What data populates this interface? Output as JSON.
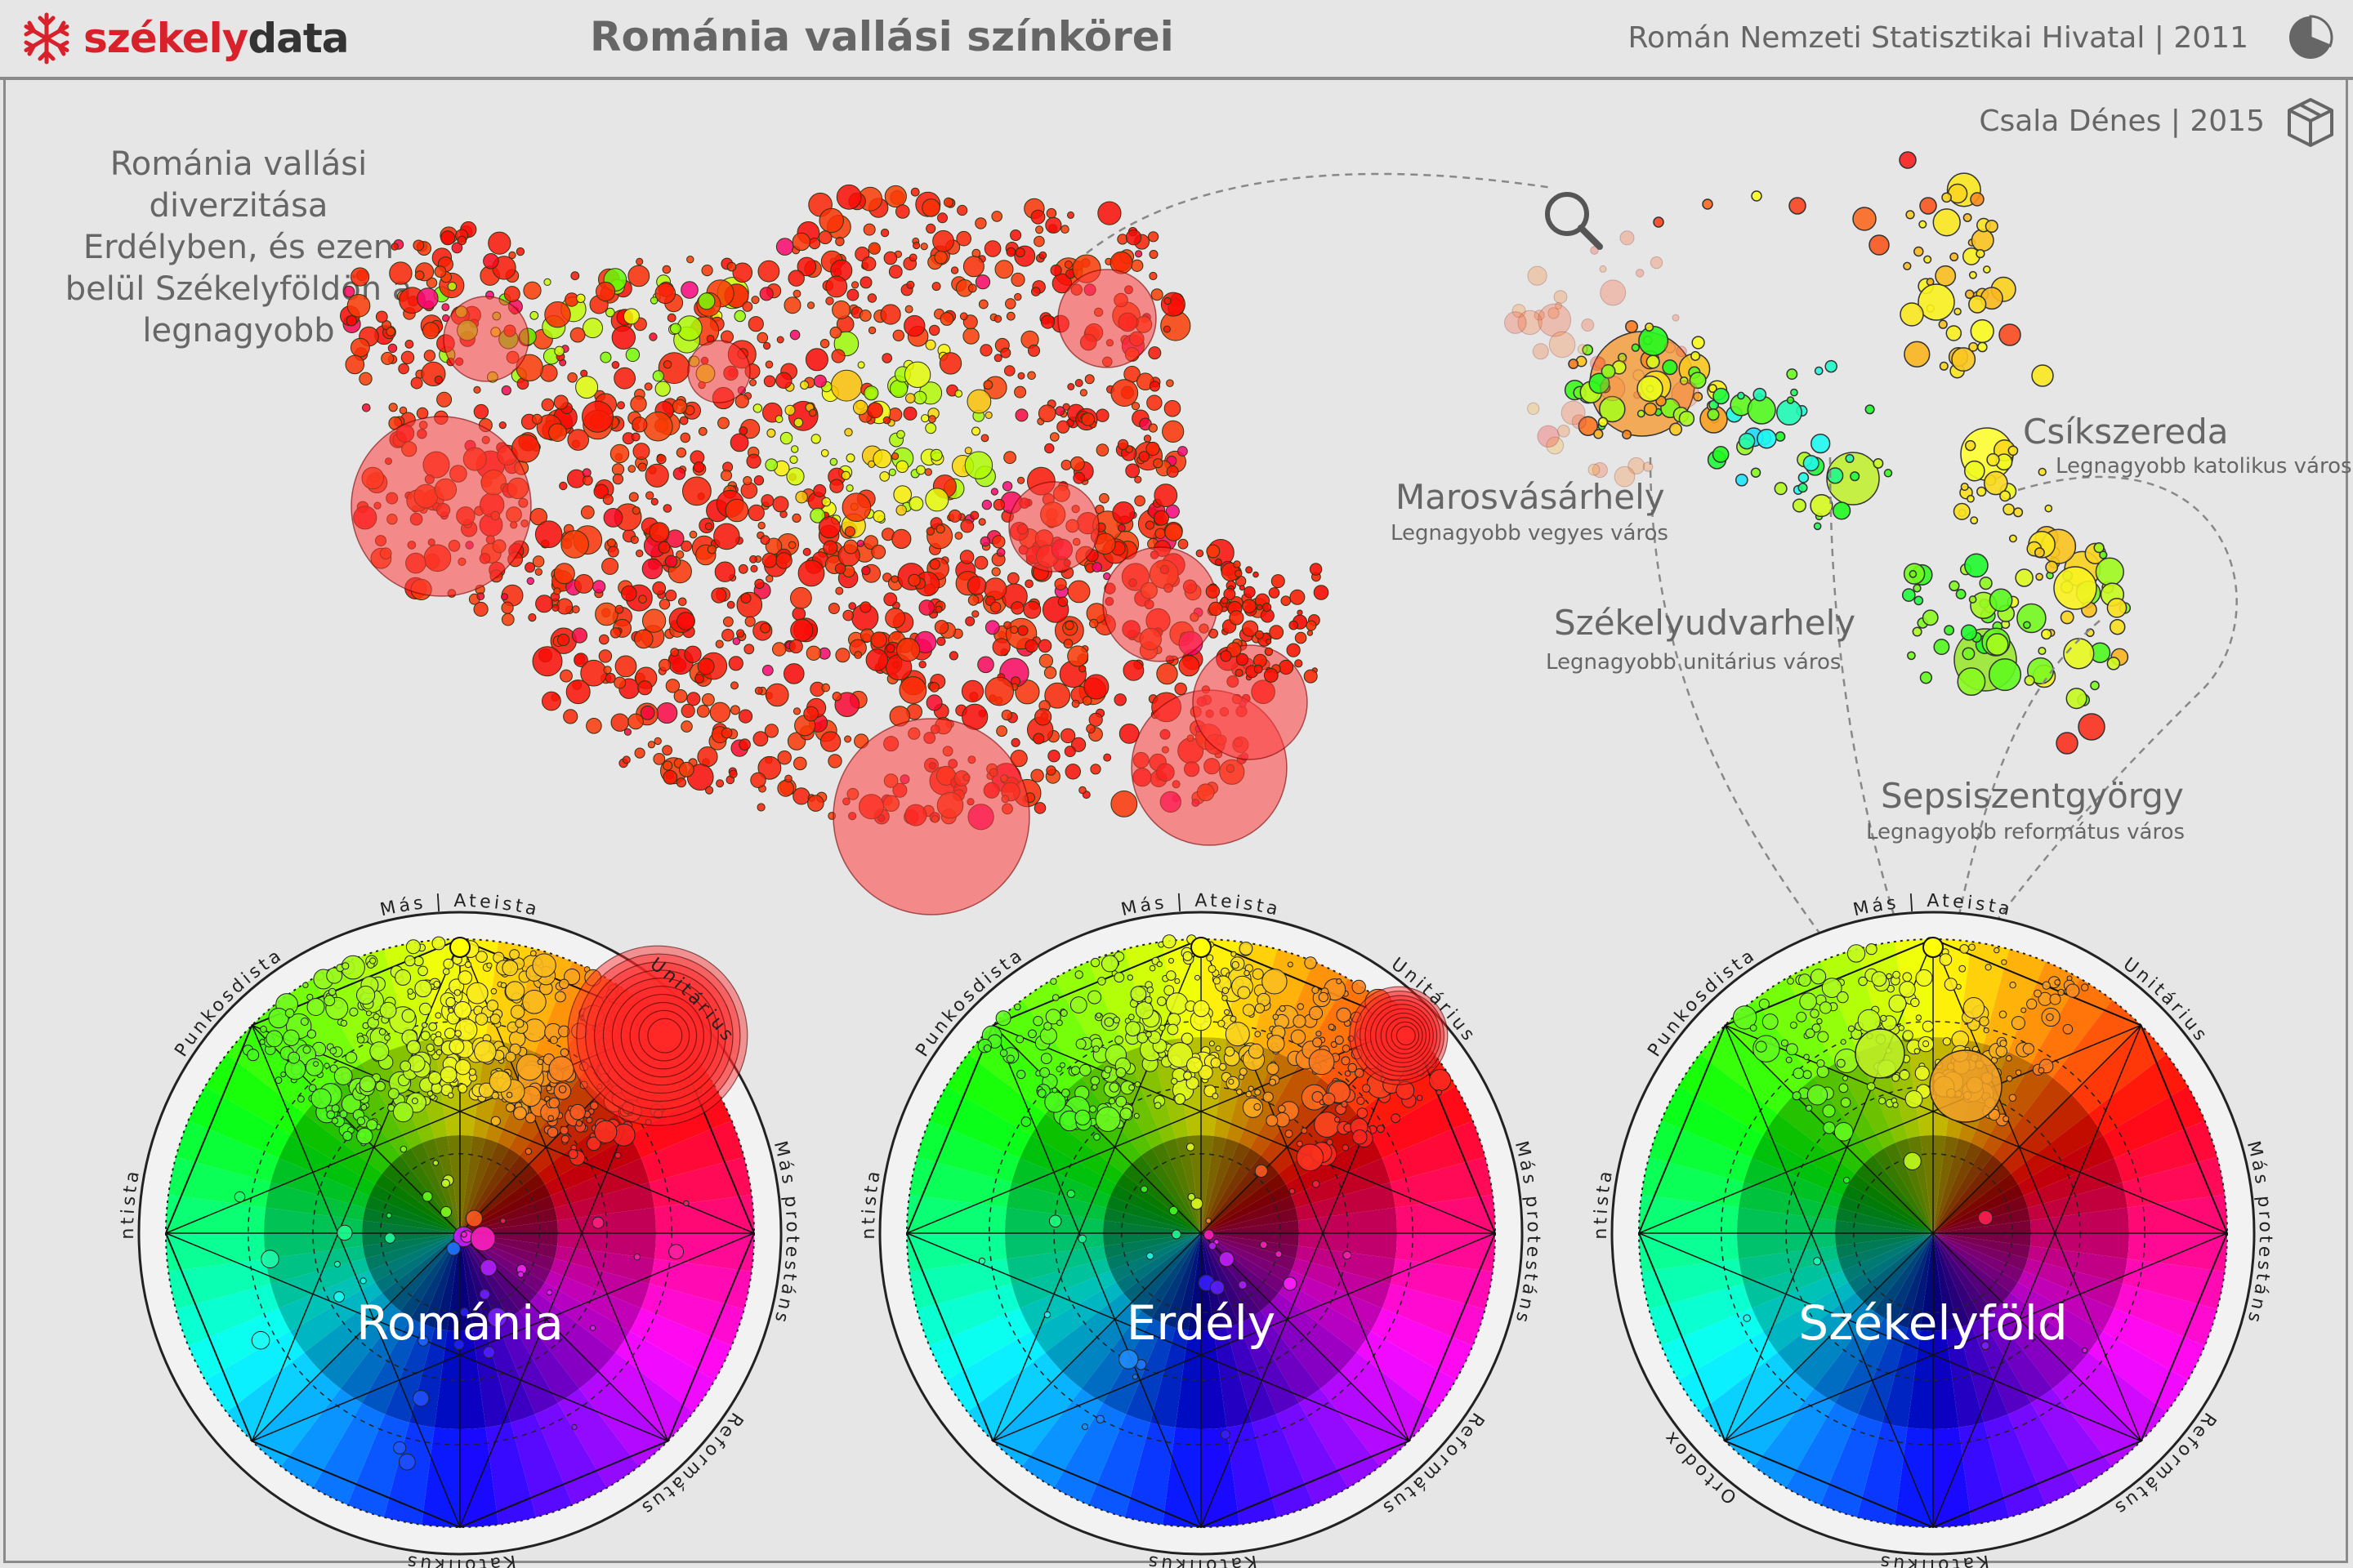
{
  "header": {
    "logo_part1": "székely",
    "logo_part2": "data",
    "title": "Románia vallási színkörei",
    "source": "Román Nemzeti Statisztikai Hivatal | 2011",
    "author": "Csala Dénes | 2015"
  },
  "icons": [
    "snowflake-logo-icon",
    "pie-chart-icon",
    "box-icon",
    "magnifier-icon"
  ],
  "intro_text": "Románia vallási diverzitása Erdélyben, és ezen belül Székelyföldön a legnagyobb",
  "cities": [
    {
      "name": "Marosvásárhely",
      "desc": "Legnagyobb vegyes város"
    },
    {
      "name": "Csíkszereda",
      "desc": "Legnagyobb katolikus város"
    },
    {
      "name": "Székelyudvarhely",
      "desc": "Legnagyobb unitárius város"
    },
    {
      "name": "Sepsiszentgyörgy",
      "desc": "Legnagyobb református város"
    }
  ],
  "wheels": [
    {
      "title": "Románia",
      "labels": [
        "Katolikus",
        "Református",
        "Más protestáns",
        "Unitárius",
        "Más | Ateista",
        "Punkosdista",
        "Adventista",
        ""
      ]
    },
    {
      "title": "Erdély",
      "labels": [
        "Katolikus",
        "Református",
        "Más protestáns",
        "Unitárius",
        "Más | Ateista",
        "Punkosdista",
        "Adventista",
        ""
      ]
    },
    {
      "title": "Székelyföld",
      "labels": [
        "Katolikus",
        "Református",
        "Más protestáns",
        "Unitárius",
        "Más | Ateista",
        "Punkosdista",
        "Adventista",
        "Ortodox"
      ]
    }
  ],
  "colors": {
    "ortodox": "#ff2020",
    "katolikus": "#ffff00",
    "reformatus": "#7fdf00",
    "brand_red": "#d8212a",
    "text_gray": "#666666"
  }
}
